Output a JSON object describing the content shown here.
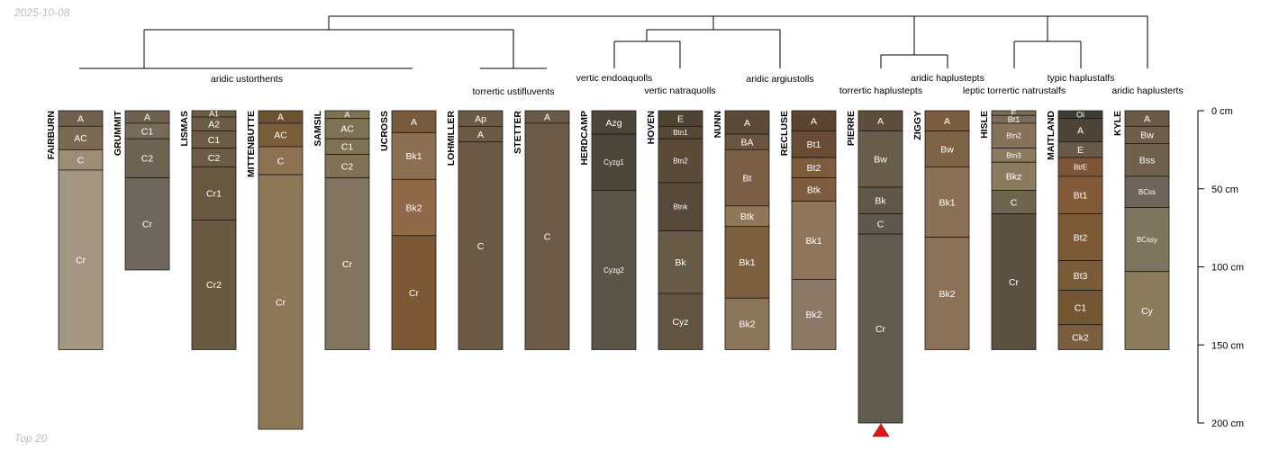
{
  "header": {
    "date": "2025-10-08"
  },
  "footer": {
    "note": "Top 20"
  },
  "colors": {
    "line": "#000000",
    "marker": "#e0141b",
    "horizon_text": "#ffffff",
    "border": "#1a1a1a"
  },
  "depth_axis": {
    "unit": "cm",
    "min": 0,
    "max": 200,
    "ticks": [
      "0 cm",
      "50 cm",
      "100 cm",
      "150 cm",
      "200 cm"
    ],
    "tick_values": [
      0,
      50,
      100,
      150,
      200
    ]
  },
  "taxa_labels": [
    "aridic ustorthents",
    "torrertic ustifluvents",
    "vertic endoaquolls",
    "vertic natraquolls",
    "aridic argiustolls",
    "torrertic haplustepts",
    "aridic haplustepts",
    "leptic torrertic natrustalfs",
    "typic haplustalfs",
    "aridic haplusterts"
  ],
  "profiles": [
    {
      "name": "FAIRBURN",
      "horizons": [
        {
          "name": "A",
          "top": 0,
          "bottom": 10,
          "color": "#6f5f4c"
        },
        {
          "name": "AC",
          "top": 10,
          "bottom": 25,
          "color": "#7b6a53"
        },
        {
          "name": "C",
          "top": 25,
          "bottom": 38,
          "color": "#9c8d74"
        },
        {
          "name": "Cr",
          "top": 38,
          "bottom": 153,
          "color": "#a39683"
        }
      ]
    },
    {
      "name": "GRUMMIT",
      "horizons": [
        {
          "name": "A",
          "top": 0,
          "bottom": 8,
          "color": "#6e5f4e"
        },
        {
          "name": "C1",
          "top": 8,
          "bottom": 18,
          "color": "#786a58"
        },
        {
          "name": "C2",
          "top": 18,
          "bottom": 43,
          "color": "#6c6353"
        },
        {
          "name": "Cr",
          "top": 43,
          "bottom": 102,
          "color": "#6f665c"
        }
      ]
    },
    {
      "name": "LISMAS",
      "horizons": [
        {
          "name": "A1",
          "top": 0,
          "bottom": 4,
          "color": "#6b5d45"
        },
        {
          "name": "A2",
          "top": 4,
          "bottom": 13,
          "color": "#6b5d45"
        },
        {
          "name": "C1",
          "top": 13,
          "bottom": 24,
          "color": "#6b5d45"
        },
        {
          "name": "C2",
          "top": 24,
          "bottom": 36,
          "color": "#6b5d45"
        },
        {
          "name": "Cr1",
          "top": 36,
          "bottom": 70,
          "color": "#66593f"
        },
        {
          "name": "Cr2",
          "top": 70,
          "bottom": 153,
          "color": "#675a41"
        }
      ]
    },
    {
      "name": "MITTENBUTTE",
      "horizons": [
        {
          "name": "A",
          "top": 0,
          "bottom": 8,
          "color": "#6c5230"
        },
        {
          "name": "AC",
          "top": 8,
          "bottom": 23,
          "color": "#7a5e38"
        },
        {
          "name": "C",
          "top": 23,
          "bottom": 41,
          "color": "#8e7150"
        },
        {
          "name": "Cr",
          "top": 41,
          "bottom": 204,
          "color": "#8c7756"
        }
      ]
    },
    {
      "name": "SAMSIL",
      "horizons": [
        {
          "name": "A",
          "top": 0,
          "bottom": 5,
          "color": "#7f7154"
        },
        {
          "name": "AC",
          "top": 5,
          "bottom": 18,
          "color": "#7f7154"
        },
        {
          "name": "C1",
          "top": 18,
          "bottom": 28,
          "color": "#7f7154"
        },
        {
          "name": "C2",
          "top": 28,
          "bottom": 43,
          "color": "#7f7154"
        },
        {
          "name": "Cr",
          "top": 43,
          "bottom": 153,
          "color": "#827560"
        }
      ]
    },
    {
      "name": "UCROSS",
      "horizons": [
        {
          "name": "A",
          "top": 0,
          "bottom": 14,
          "color": "#7a5a3c"
        },
        {
          "name": "Bk1",
          "top": 14,
          "bottom": 44,
          "color": "#8c6e52"
        },
        {
          "name": "Bk2",
          "top": 44,
          "bottom": 80,
          "color": "#8e6a48"
        },
        {
          "name": "Cr",
          "top": 80,
          "bottom": 153,
          "color": "#7c5834"
        }
      ]
    },
    {
      "name": "LOHMILLER",
      "horizons": [
        {
          "name": "Ap",
          "top": 0,
          "bottom": 10,
          "color": "#6b5b46"
        },
        {
          "name": "A",
          "top": 10,
          "bottom": 20,
          "color": "#6b5b46"
        },
        {
          "name": "C",
          "top": 20,
          "bottom": 153,
          "color": "#6b5b46"
        }
      ]
    },
    {
      "name": "STETTER",
      "horizons": [
        {
          "name": "A",
          "top": 0,
          "bottom": 8,
          "color": "#685a46"
        },
        {
          "name": "C",
          "top": 8,
          "bottom": 153,
          "color": "#6b5b48"
        }
      ]
    },
    {
      "name": "HERDCAMP",
      "horizons": [
        {
          "name": "Azg",
          "top": 0,
          "bottom": 15,
          "color": "#4d4538"
        },
        {
          "name": "Cyzg1",
          "top": 15,
          "bottom": 51,
          "color": "#4c4639"
        },
        {
          "name": "Cyzg2",
          "top": 51,
          "bottom": 153,
          "color": "#5b5548"
        }
      ]
    },
    {
      "name": "HOVEN",
      "horizons": [
        {
          "name": "E",
          "top": 0,
          "bottom": 10,
          "color": "#4f4333"
        },
        {
          "name": "Btn1",
          "top": 10,
          "bottom": 18,
          "color": "#574836"
        },
        {
          "name": "Btn2",
          "top": 18,
          "bottom": 46,
          "color": "#5b4a38"
        },
        {
          "name": "Btnk",
          "top": 46,
          "bottom": 77,
          "color": "#574a3b"
        },
        {
          "name": "Bk",
          "top": 77,
          "bottom": 117,
          "color": "#675b48"
        },
        {
          "name": "Cyz",
          "top": 117,
          "bottom": 153,
          "color": "#615443"
        }
      ]
    },
    {
      "name": "NUNN",
      "horizons": [
        {
          "name": "A",
          "top": 0,
          "bottom": 15,
          "color": "#5b4a38"
        },
        {
          "name": "BA",
          "top": 15,
          "bottom": 25,
          "color": "#6a5440"
        },
        {
          "name": "Bt",
          "top": 25,
          "bottom": 61,
          "color": "#7a5f45"
        },
        {
          "name": "Btk",
          "top": 61,
          "bottom": 74,
          "color": "#907758"
        },
        {
          "name": "Bk1",
          "top": 74,
          "bottom": 120,
          "color": "#7c6040"
        },
        {
          "name": "Bk2",
          "top": 120,
          "bottom": 153,
          "color": "#8a7558"
        }
      ]
    },
    {
      "name": "RECLUSE",
      "horizons": [
        {
          "name": "A",
          "top": 0,
          "bottom": 13,
          "color": "#5c4530"
        },
        {
          "name": "Bt1",
          "top": 13,
          "bottom": 30,
          "color": "#6a4c34"
        },
        {
          "name": "Bt2",
          "top": 30,
          "bottom": 43,
          "color": "#7d5d3d"
        },
        {
          "name": "Btk",
          "top": 43,
          "bottom": 58,
          "color": "#7d5d3d"
        },
        {
          "name": "Bk1",
          "top": 58,
          "bottom": 108,
          "color": "#8f755b"
        },
        {
          "name": "Bk2",
          "top": 108,
          "bottom": 153,
          "color": "#8c7867"
        }
      ]
    },
    {
      "name": "PIERRE",
      "horizons": [
        {
          "name": "A",
          "top": 0,
          "bottom": 13,
          "color": "#5c4d3c"
        },
        {
          "name": "Bw",
          "top": 13,
          "bottom": 49,
          "color": "#6b5d4b"
        },
        {
          "name": "Bk",
          "top": 49,
          "bottom": 66,
          "color": "#615746"
        },
        {
          "name": "C",
          "top": 66,
          "bottom": 79,
          "color": "#5f594d"
        },
        {
          "name": "Cr",
          "top": 79,
          "bottom": 200,
          "color": "#625c4f"
        }
      ]
    },
    {
      "name": "ZIGGY",
      "horizons": [
        {
          "name": "A",
          "top": 0,
          "bottom": 13,
          "color": "#7a5e3f"
        },
        {
          "name": "Bw",
          "top": 13,
          "bottom": 36,
          "color": "#7e6346"
        },
        {
          "name": "Bk1",
          "top": 36,
          "bottom": 81,
          "color": "#8a7055"
        },
        {
          "name": "Bk2",
          "top": 81,
          "bottom": 153,
          "color": "#8b7158"
        }
      ]
    },
    {
      "name": "HISLE",
      "horizons": [
        {
          "name": "E",
          "top": 0,
          "bottom": 3,
          "color": "#7e6d56"
        },
        {
          "name": "Bt1",
          "top": 3,
          "bottom": 8,
          "color": "#7e6d56"
        },
        {
          "name": "Btn2",
          "top": 8,
          "bottom": 24,
          "color": "#857258"
        },
        {
          "name": "Btn3",
          "top": 24,
          "bottom": 33,
          "color": "#8a7a5e"
        },
        {
          "name": "Bkz",
          "top": 33,
          "bottom": 51,
          "color": "#8c7c5f"
        },
        {
          "name": "C",
          "top": 51,
          "bottom": 66,
          "color": "#6e6450"
        },
        {
          "name": "Cr",
          "top": 66,
          "bottom": 153,
          "color": "#5c5141"
        }
      ]
    },
    {
      "name": "MAITLAND",
      "horizons": [
        {
          "name": "Oi",
          "top": 0,
          "bottom": 5,
          "color": "#3f3a33"
        },
        {
          "name": "A",
          "top": 5,
          "bottom": 20,
          "color": "#4d4337"
        },
        {
          "name": "E",
          "top": 20,
          "bottom": 30,
          "color": "#685a46"
        },
        {
          "name": "Bt/E",
          "top": 30,
          "bottom": 42,
          "color": "#7d5638"
        },
        {
          "name": "Bt1",
          "top": 42,
          "bottom": 66,
          "color": "#825a38"
        },
        {
          "name": "Bt2",
          "top": 66,
          "bottom": 96,
          "color": "#7d5a36"
        },
        {
          "name": "Bt3",
          "top": 96,
          "bottom": 115,
          "color": "#7a5c38"
        },
        {
          "name": "C1",
          "top": 115,
          "bottom": 137,
          "color": "#735632"
        },
        {
          "name": "Ck2",
          "top": 137,
          "bottom": 153,
          "color": "#7a5e3f"
        }
      ]
    },
    {
      "name": "KYLE",
      "horizons": [
        {
          "name": "A",
          "top": 0,
          "bottom": 10,
          "color": "#6b5a45"
        },
        {
          "name": "Bw",
          "top": 10,
          "bottom": 21,
          "color": "#6f5e49"
        },
        {
          "name": "Bss",
          "top": 21,
          "bottom": 42,
          "color": "#6f614c"
        },
        {
          "name": "BCss",
          "top": 42,
          "bottom": 62,
          "color": "#6f655a"
        },
        {
          "name": "BCssy",
          "top": 62,
          "bottom": 103,
          "color": "#7f745e"
        },
        {
          "name": "Cy",
          "top": 103,
          "bottom": 153,
          "color": "#8b7c5a"
        }
      ]
    }
  ]
}
